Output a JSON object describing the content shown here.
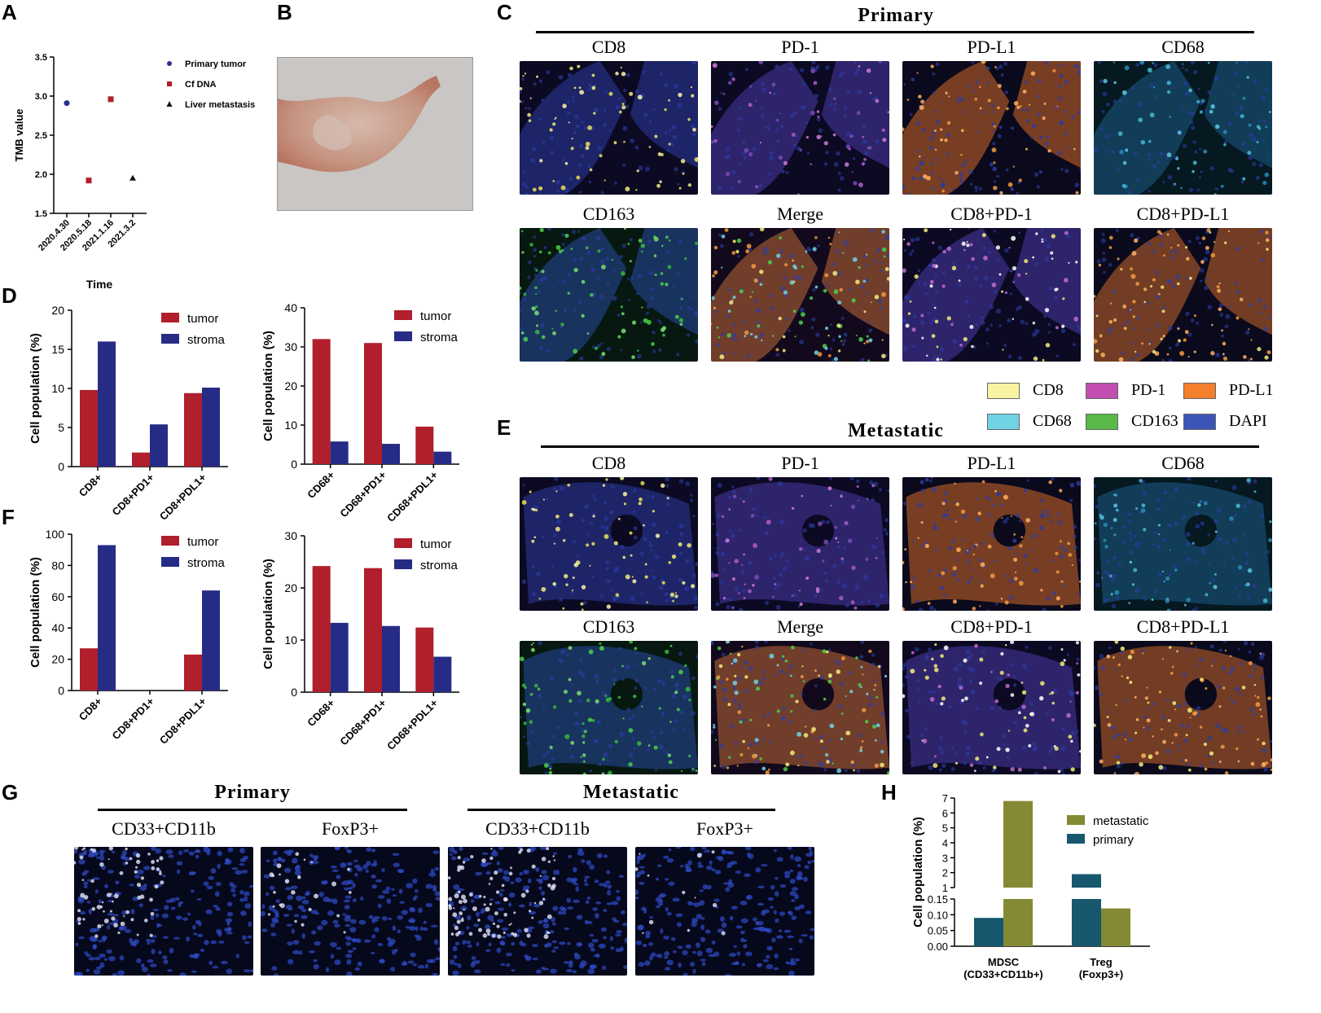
{
  "panels": {
    "A": "A",
    "B": "B",
    "C": "C",
    "D": "D",
    "E": "E",
    "F": "F",
    "G": "G",
    "H": "H"
  },
  "panelA": {
    "chart_data": {
      "type": "scatter",
      "xlabel": "Time",
      "ylabel": "TMB value",
      "categories": [
        "2020.4.30",
        "2020.5.18",
        "2021.1.16",
        "2021.3.2"
      ],
      "yticks": [
        "1.5",
        "2.0",
        "2.5",
        "3.0",
        "3.5"
      ],
      "ylim": [
        1.5,
        3.5
      ],
      "series": [
        {
          "name": "Primary tumor",
          "color": "#2b2f8f",
          "marker": "circle",
          "points": [
            {
              "x": "2020.4.30",
              "y": 2.91
            }
          ]
        },
        {
          "name": "Cf DNA",
          "color": "#b01f2b",
          "marker": "square",
          "points": [
            {
              "x": "2020.5.18",
              "y": 1.92
            },
            {
              "x": "2021.1.16",
              "y": 2.96
            }
          ]
        },
        {
          "name": "Liver metastasis",
          "color": "#111111",
          "marker": "triangle",
          "points": [
            {
              "x": "2021.3.2",
              "y": 1.95
            }
          ]
        }
      ]
    }
  },
  "panelC": {
    "title": "Primary",
    "row1": [
      "CD8",
      "PD-1",
      "PD-L1",
      "CD68"
    ],
    "row2": [
      "CD163",
      "Merge",
      "CD8+PD-1",
      "CD8+PD-L1"
    ]
  },
  "legend": {
    "items": [
      {
        "label": "CD8",
        "color": "#f8f3a0"
      },
      {
        "label": "PD-1",
        "color": "#c24fb0"
      },
      {
        "label": "PD-L1",
        "color": "#f47f2c"
      },
      {
        "label": "CD68",
        "color": "#6fd3e4"
      },
      {
        "label": "CD163",
        "color": "#58b947"
      },
      {
        "label": "DAPI",
        "color": "#3a55b6"
      }
    ]
  },
  "panelE": {
    "title": "Metastatic",
    "row1": [
      "CD8",
      "PD-1",
      "PD-L1",
      "CD68"
    ],
    "row2": [
      "CD163",
      "Merge",
      "CD8+PD-1",
      "CD8+PD-L1"
    ]
  },
  "panelD": {
    "chart_data": [
      {
        "type": "bar",
        "ylabel": "Cell population (%)",
        "ylim": [
          0,
          20
        ],
        "yticks": [
          "0",
          "5",
          "10",
          "15",
          "20"
        ],
        "categories": [
          "CD8+",
          "CD8+PD1+",
          "CD8+PDL1+"
        ],
        "series": [
          {
            "name": "tumor",
            "color": "#b01f2b",
            "values": [
              9.8,
              1.8,
              9.4
            ]
          },
          {
            "name": "stroma",
            "color": "#262c85",
            "values": [
              16.0,
              5.4,
              10.1
            ]
          }
        ]
      },
      {
        "type": "bar",
        "ylabel": "Cell population (%)",
        "ylim": [
          0,
          40
        ],
        "yticks": [
          "0",
          "10",
          "20",
          "30",
          "40"
        ],
        "categories": [
          "CD68+",
          "CD68+PD1+",
          "CD68+PDL1+"
        ],
        "series": [
          {
            "name": "tumor",
            "color": "#b01f2b",
            "values": [
              32.0,
              31.0,
              9.6
            ]
          },
          {
            "name": "stroma",
            "color": "#262c85",
            "values": [
              5.8,
              5.2,
              3.2
            ]
          }
        ]
      }
    ]
  },
  "panelF": {
    "chart_data": [
      {
        "type": "bar",
        "ylabel": "Cell population (%)",
        "ylim": [
          0,
          100
        ],
        "yticks": [
          "0",
          "20",
          "40",
          "60",
          "80",
          "100"
        ],
        "categories": [
          "CD8+",
          "CD8+PD1+",
          "CD8+PDL1+"
        ],
        "series": [
          {
            "name": "tumor",
            "color": "#b01f2b",
            "values": [
              27,
              0,
              23
            ]
          },
          {
            "name": "stroma",
            "color": "#262c85",
            "values": [
              93,
              0,
              64
            ]
          }
        ]
      },
      {
        "type": "bar",
        "ylabel": "Cell population (%)",
        "ylim": [
          0,
          30
        ],
        "yticks": [
          "0",
          "10",
          "20",
          "30"
        ],
        "categories": [
          "CD68+",
          "CD68+PD1+",
          "CD68+PDL1+"
        ],
        "series": [
          {
            "name": "tumor",
            "color": "#b01f2b",
            "values": [
              24.2,
              23.8,
              12.4
            ]
          },
          {
            "name": "stroma",
            "color": "#262c85",
            "values": [
              13.3,
              12.7,
              6.8
            ]
          }
        ]
      }
    ]
  },
  "panelG": {
    "primary_title": "Primary",
    "metastatic_title": "Metastatic",
    "labels": [
      "CD33+CD11b",
      "FoxP3+",
      "CD33+CD11b",
      "FoxP3+"
    ]
  },
  "panelH": {
    "chart_data": {
      "type": "bar",
      "ylabel": "Cell population (%)",
      "axis_break": true,
      "yticks_low": [
        "0.00",
        "0.05",
        "0.10",
        "0.15"
      ],
      "yticks_high": [
        "1",
        "2",
        "3",
        "4",
        "5",
        "6",
        "7"
      ],
      "categories": [
        {
          "line1": "MDSC",
          "line2": "(CD33+CD11b+)"
        },
        {
          "line1": "Treg",
          "line2": "(Foxp3+)"
        }
      ],
      "series": [
        {
          "name": "primary",
          "color": "#17586e",
          "values": [
            0.09,
            1.9
          ]
        },
        {
          "name": "metastatic",
          "color": "#848a33",
          "values": [
            6.8,
            0.12
          ]
        }
      ],
      "legend_order": [
        "metastatic",
        "primary"
      ]
    }
  }
}
